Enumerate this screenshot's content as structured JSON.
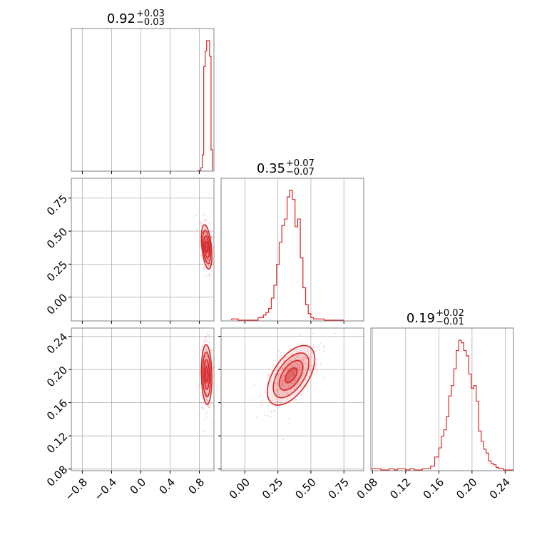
{
  "chart_data": {
    "type": "corner",
    "color": "#d62728",
    "grid": true,
    "parameters": [
      {
        "title_value": "0.92",
        "title_plus": "+0.03",
        "title_minus": "−0.03",
        "range": [
          -0.95,
          1.0
        ],
        "ticks": [
          -0.8,
          -0.4,
          0.0,
          0.4,
          0.8
        ],
        "tick_labels": [
          "−0.8",
          "−0.4",
          "0.0",
          "0.4",
          "0.8"
        ]
      },
      {
        "title_value": "0.35",
        "title_plus": "+0.07",
        "title_minus": "−0.07",
        "range": [
          -0.18,
          0.9
        ],
        "ticks": [
          0.0,
          0.25,
          0.5,
          0.75
        ],
        "tick_labels": [
          "0.00",
          "0.25",
          "0.50",
          "0.75"
        ]
      },
      {
        "title_value": "0.19",
        "title_plus": "+0.02",
        "title_minus": "−0.01",
        "range": [
          0.078,
          0.25
        ],
        "ticks": [
          0.08,
          0.12,
          0.16,
          0.2,
          0.24
        ],
        "tick_labels": [
          "0.08",
          "0.12",
          "0.16",
          "0.20",
          "0.24"
        ]
      }
    ],
    "histograms": [
      {
        "bin_edges": [
          0.78,
          0.8,
          0.82,
          0.84,
          0.86,
          0.88,
          0.9,
          0.92,
          0.94,
          0.96,
          0.98
        ],
        "counts": [
          0,
          0,
          2,
          12,
          80,
          92,
          100,
          100,
          88,
          16
        ]
      },
      {
        "bin_edges": [
          -0.1,
          -0.05,
          0.05,
          0.1,
          0.14,
          0.16,
          0.18,
          0.2,
          0.22,
          0.24,
          0.26,
          0.28,
          0.3,
          0.32,
          0.34,
          0.36,
          0.38,
          0.4,
          0.42,
          0.44,
          0.46,
          0.48,
          0.5,
          0.52,
          0.55,
          0.6,
          0.75
        ],
        "counts": [
          1,
          0,
          0,
          2,
          4,
          6,
          9,
          17,
          27,
          43,
          60,
          73,
          78,
          95,
          100,
          93,
          72,
          78,
          48,
          25,
          12,
          5,
          2,
          1,
          1,
          0
        ]
      },
      {
        "bin_edges": [
          0.078,
          0.09,
          0.1,
          0.106,
          0.11,
          0.12,
          0.125,
          0.13,
          0.14,
          0.15,
          0.155,
          0.16,
          0.163,
          0.166,
          0.169,
          0.172,
          0.175,
          0.178,
          0.181,
          0.184,
          0.187,
          0.19,
          0.193,
          0.196,
          0.199,
          0.202,
          0.205,
          0.208,
          0.211,
          0.214,
          0.217,
          0.22,
          0.223,
          0.226,
          0.229,
          0.232,
          0.235,
          0.238,
          0.241,
          0.244,
          0.25
        ],
        "counts": [
          1,
          0,
          1,
          0,
          1,
          0,
          1,
          0,
          1,
          3,
          10,
          17,
          26,
          31,
          41,
          57,
          65,
          78,
          92,
          100,
          98,
          92,
          88,
          74,
          63,
          65,
          53,
          30,
          22,
          16,
          13,
          7,
          5,
          4,
          2,
          1,
          1,
          0,
          0,
          0
        ]
      }
    ],
    "joint": [
      {
        "row": 1,
        "col": 0,
        "center": [
          0.9,
          0.38
        ],
        "sigma": [
          0.03,
          0.07
        ],
        "rho": -0.4
      },
      {
        "row": 2,
        "col": 0,
        "center": [
          0.9,
          0.194
        ],
        "sigma": [
          0.03,
          0.015
        ],
        "rho": -0.1
      },
      {
        "row": 2,
        "col": 1,
        "center": [
          0.35,
          0.193
        ],
        "sigma": [
          0.075,
          0.015
        ],
        "rho": 0.55
      }
    ]
  }
}
